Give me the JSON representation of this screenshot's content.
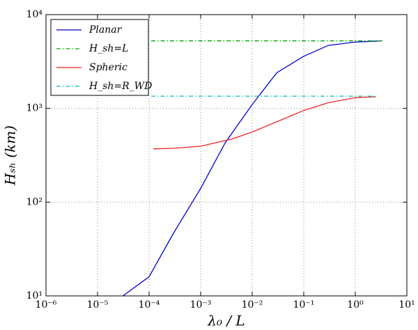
{
  "chart_data": {
    "type": "line",
    "xlabel": "λ₀ / L",
    "ylabel": "Hₛₕ  (km)",
    "xscale": "log",
    "yscale": "log",
    "grid": true,
    "legend": "upper left",
    "xlim": [
      1e-06,
      10
    ],
    "ylim": [
      10,
      10000
    ],
    "xticks": [
      {
        "value": 1e-06,
        "label": "10⁻⁶"
      },
      {
        "value": 1e-05,
        "label": "10⁻⁵"
      },
      {
        "value": 0.0001,
        "label": "10⁻⁴"
      },
      {
        "value": 0.001,
        "label": "10⁻³"
      },
      {
        "value": 0.01,
        "label": "10⁻²"
      },
      {
        "value": 0.1,
        "label": "10⁻¹"
      },
      {
        "value": 1,
        "label": "10⁰"
      },
      {
        "value": 10,
        "label": "10¹"
      }
    ],
    "yticks": [
      {
        "value": 10,
        "label": "10¹"
      },
      {
        "value": 100,
        "label": "10²"
      },
      {
        "value": 1000,
        "label": "10³"
      },
      {
        "value": 10000,
        "label": "10⁴"
      }
    ],
    "series": [
      {
        "name": "Planar",
        "color": "#0000cc",
        "dash": "solid",
        "x": [
          3.1e-05,
          0.0001,
          0.0003,
          0.001,
          0.003,
          0.01,
          0.03,
          0.1,
          0.3,
          1,
          3.3
        ],
        "values": [
          10,
          16,
          47,
          140,
          430,
          1100,
          2400,
          3600,
          4700,
          5100,
          5250
        ]
      },
      {
        "name": "H_sh=L",
        "color": "#00aa00",
        "dash": "dashdot",
        "x": [
          0.00011,
          3.3
        ],
        "values": [
          5250,
          5250
        ]
      },
      {
        "name": "Spheric",
        "color": "#ee2222",
        "dash": "solid",
        "x": [
          0.00012,
          0.0003,
          0.001,
          0.004,
          0.01,
          0.03,
          0.1,
          0.3,
          1,
          2.5
        ],
        "values": [
          370,
          375,
          395,
          470,
          560,
          720,
          950,
          1150,
          1300,
          1330
        ]
      },
      {
        "name": "H_sh=R_WD",
        "color": "#00bbbb",
        "dash": "dashdot",
        "x": [
          0.00011,
          2.5
        ],
        "values": [
          1350,
          1350
        ]
      }
    ]
  }
}
